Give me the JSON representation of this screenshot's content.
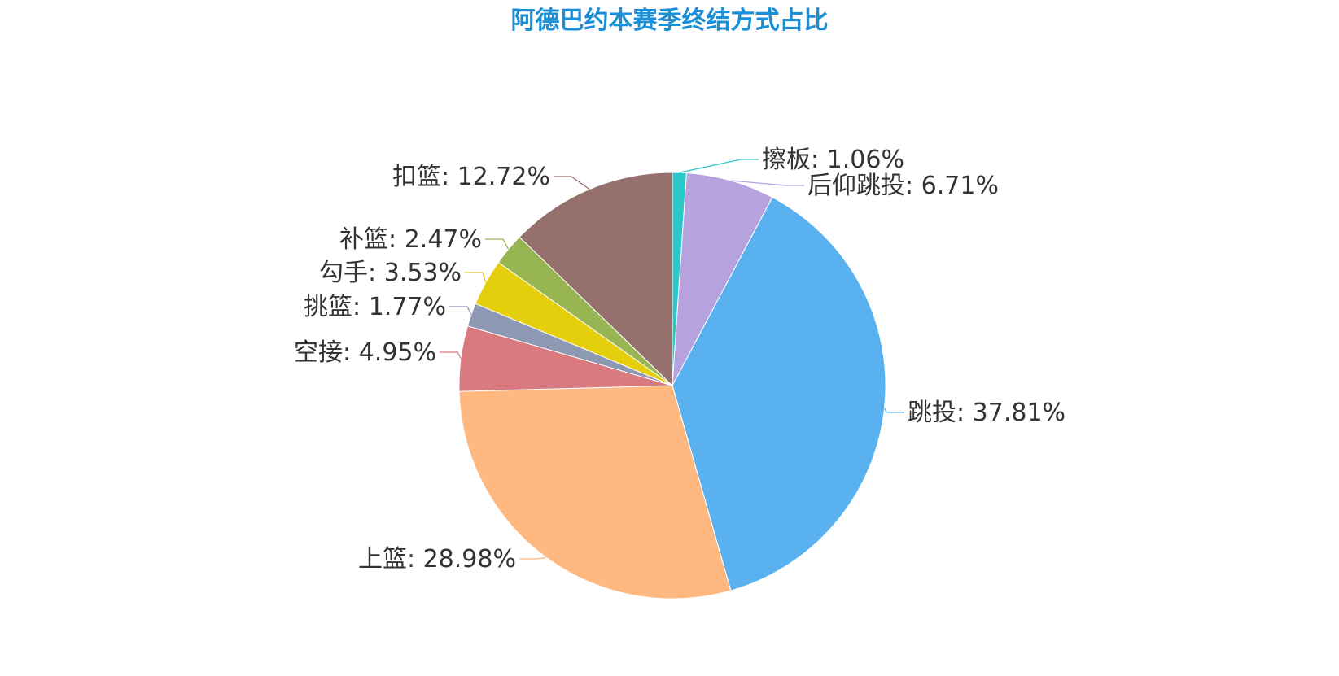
{
  "chart_data": {
    "type": "pie",
    "title": "阿德巴约本赛季终结方式占比",
    "start_angle_deg": 90,
    "direction": "clockwise",
    "slices": [
      {
        "name": "擦板",
        "value": 1.06,
        "label": "擦板: 1.06%",
        "color": "#2ec7c9"
      },
      {
        "name": "后仰跳投",
        "value": 6.71,
        "label": "后仰跳投: 6.71%",
        "color": "#b6a2de"
      },
      {
        "name": "跳投",
        "value": 37.81,
        "label": "跳投: 37.81%",
        "color": "#5ab1ef"
      },
      {
        "name": "上篮",
        "value": 28.98,
        "label": "上篮: 28.98%",
        "color": "#ffb980"
      },
      {
        "name": "空接",
        "value": 4.95,
        "label": "空接: 4.95%",
        "color": "#d87a80"
      },
      {
        "name": "挑篮",
        "value": 1.77,
        "label": "挑篮: 1.77%",
        "color": "#8d98b3"
      },
      {
        "name": "勾手",
        "value": 3.53,
        "label": "勾手: 3.53%",
        "color": "#e5cf0d"
      },
      {
        "name": "补篮",
        "value": 2.47,
        "label": "补篮: 2.47%",
        "color": "#97b552"
      },
      {
        "name": "扣篮",
        "value": 12.72,
        "label": "扣篮: 12.72%",
        "color": "#95706d"
      }
    ]
  }
}
